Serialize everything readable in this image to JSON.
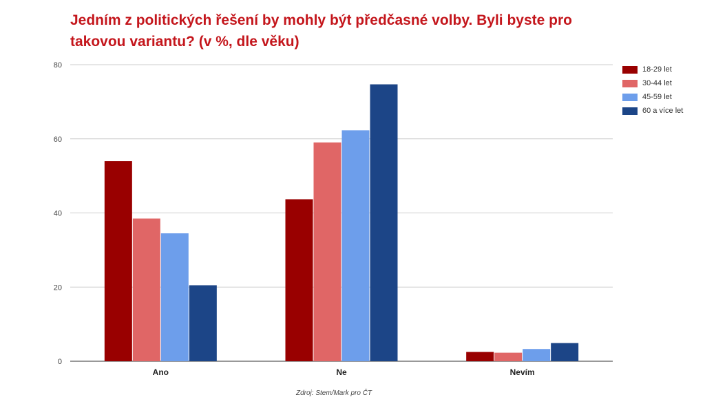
{
  "chart_data": {
    "type": "bar",
    "title": "Jedním z politických řešení by mohly být předčasné volby. Byli byste pro takovou variantu? (v %, dle věku)",
    "categories": [
      "Ano",
      "Ne",
      "Nevím"
    ],
    "series": [
      {
        "name": "18-29 let",
        "color": "#990000",
        "values": [
          54,
          43.7,
          2.5
        ]
      },
      {
        "name": "30-44 let",
        "color": "#e06666",
        "values": [
          38.5,
          59,
          2.3
        ]
      },
      {
        "name": "45-59 let",
        "color": "#6d9eeb",
        "values": [
          34.5,
          62.3,
          3.3
        ]
      },
      {
        "name": "60 a více let",
        "color": "#1c4587",
        "values": [
          20.5,
          74.7,
          4.9
        ]
      }
    ],
    "yticks": [
      0,
      20,
      40,
      60,
      80
    ],
    "ylim": [
      0,
      80
    ],
    "grid": true,
    "legend_position": "right",
    "source": "Zdroj: Stem/Mark pro ČT"
  }
}
